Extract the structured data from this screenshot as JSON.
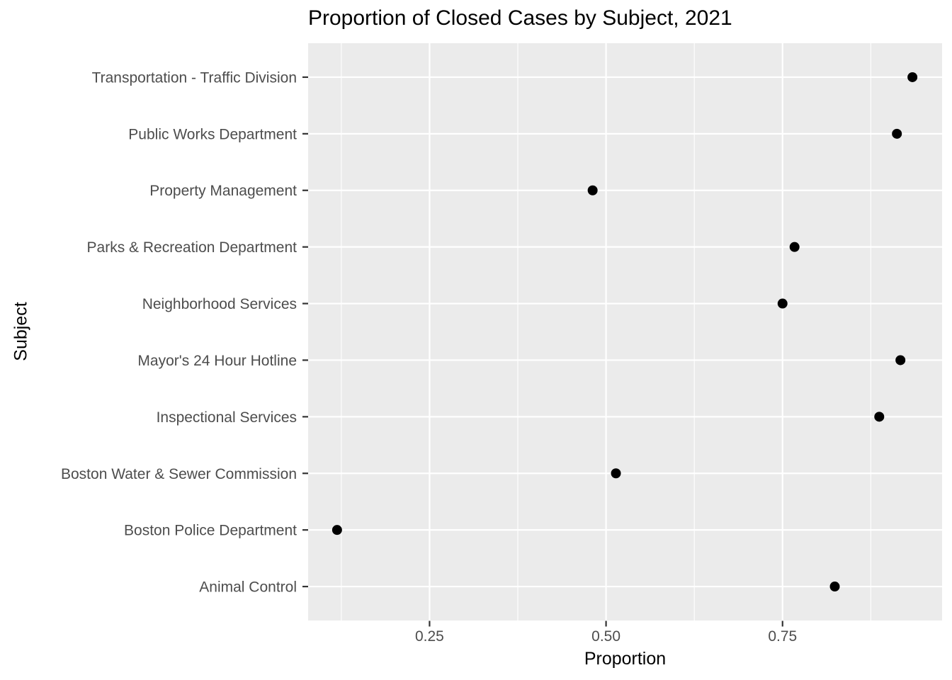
{
  "chart_data": {
    "type": "scatter",
    "subtype": "horizontal-dot-plot",
    "title": "Proportion of Closed Cases by Subject, 2021",
    "xlabel": "Proportion",
    "ylabel": "Subject",
    "categories_top_to_bottom": [
      "Transportation - Traffic Division",
      "Public Works Department",
      "Property Management",
      "Parks & Recreation Department",
      "Neighborhood Services",
      "Mayor's 24 Hour Hotline",
      "Inspectional Services",
      "Boston Water & Sewer Commission",
      "Boston Police Department",
      "Animal Control"
    ],
    "values": [
      0.934,
      0.912,
      0.481,
      0.767,
      0.75,
      0.917,
      0.887,
      0.514,
      0.119,
      0.824
    ],
    "xlim": [
      0.078,
      0.976
    ],
    "x_major_ticks": [
      0.25,
      0.5,
      0.75
    ],
    "x_tick_labels": [
      "0.25",
      "0.50",
      "0.75"
    ],
    "x_minor_gridlines": [
      0.125,
      0.375,
      0.625,
      0.875
    ],
    "grid": "major white on gray panel, horizontal line per category",
    "legend": false,
    "colors": {
      "page_bg": "#FFFFFF",
      "panel_bg": "#EBEBEB",
      "gridline": "#FFFFFF",
      "point": "#000000",
      "axis_text": "#4D4D4D",
      "axis_title": "#000000",
      "title_text": "#000000",
      "tick_mark": "#333333"
    }
  }
}
